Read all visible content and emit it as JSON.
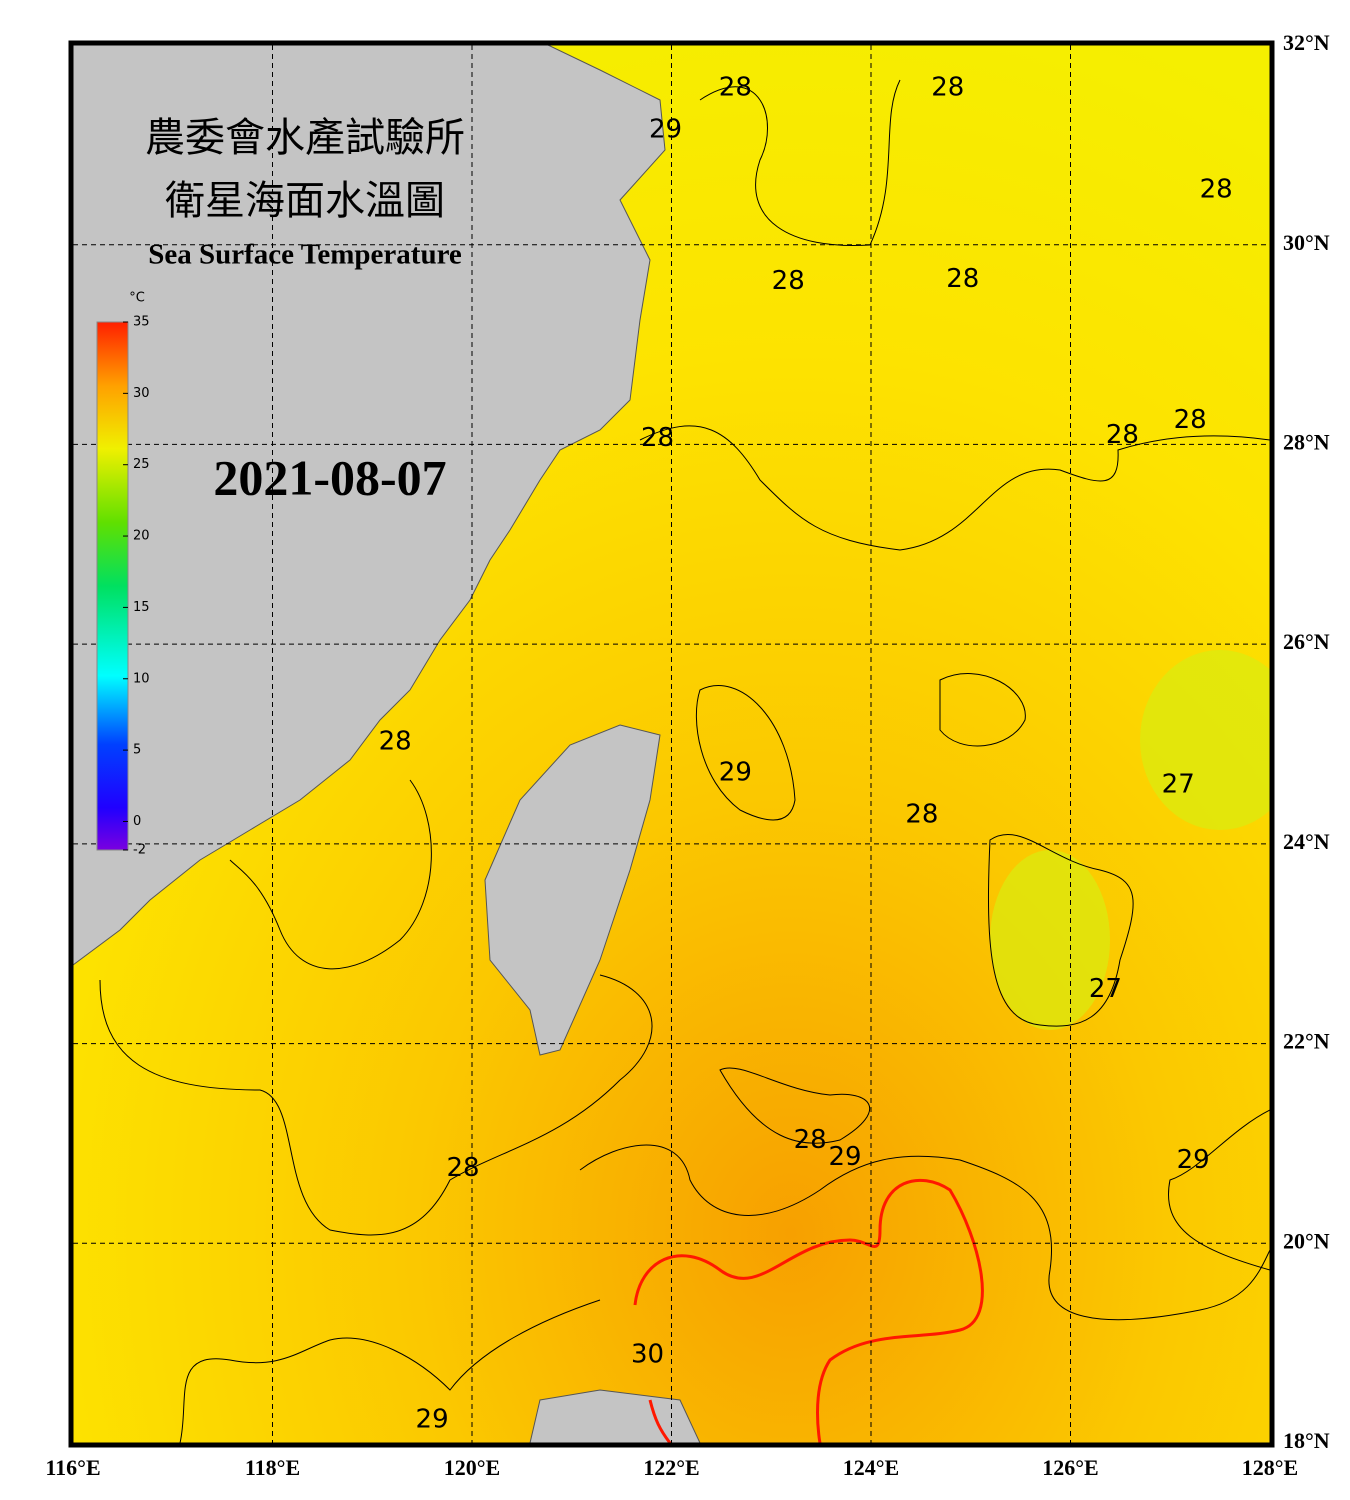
{
  "map": {
    "title_zh_1": "農委會水產試驗所",
    "title_zh_2": "衛星海面水溫圖",
    "title_en": "Sea Surface Temperature",
    "date": "2021-08-07",
    "xlim": [
      116,
      128
    ],
    "ylim": [
      18,
      32
    ],
    "xticks": [
      {
        "value": 116,
        "label": "116°E"
      },
      {
        "value": 118,
        "label": "118°E"
      },
      {
        "value": 120,
        "label": "120°E"
      },
      {
        "value": 122,
        "label": "122°E"
      },
      {
        "value": 124,
        "label": "124°E"
      },
      {
        "value": 126,
        "label": "126°E"
      },
      {
        "value": 128,
        "label": "128°E"
      }
    ],
    "yticks": [
      {
        "value": 18,
        "label": "18°N"
      },
      {
        "value": 20,
        "label": "20°N"
      },
      {
        "value": 22,
        "label": "22°N"
      },
      {
        "value": 24,
        "label": "24°N"
      },
      {
        "value": 26,
        "label": "26°N"
      },
      {
        "value": 28,
        "label": "28°N"
      },
      {
        "value": 30,
        "label": "30°N"
      },
      {
        "value": 32,
        "label": "32°N"
      }
    ],
    "grid": true,
    "colorbar": {
      "unit": "°C",
      "clim": [
        -2,
        35
      ],
      "ticks": [
        35,
        30,
        25,
        20,
        15,
        10,
        5,
        0,
        -2
      ]
    },
    "contour_labels": [
      {
        "value": 28,
        "lon": 122.64,
        "lat": 31.57
      },
      {
        "value": 28,
        "lon": 124.77,
        "lat": 31.57
      },
      {
        "value": 28,
        "lon": 127.46,
        "lat": 30.55
      },
      {
        "value": 28,
        "lon": 123.17,
        "lat": 29.63
      },
      {
        "value": 28,
        "lon": 124.92,
        "lat": 29.65
      },
      {
        "value": 28,
        "lon": 127.2,
        "lat": 28.24
      },
      {
        "value": 28,
        "lon": 126.52,
        "lat": 28.09
      },
      {
        "value": 28,
        "lon": 121.86,
        "lat": 28.06
      },
      {
        "value": 29,
        "lon": 121.94,
        "lat": 31.15
      },
      {
        "value": 28,
        "lon": 119.23,
        "lat": 25.02
      },
      {
        "value": 29,
        "lon": 122.64,
        "lat": 24.71
      },
      {
        "value": 28,
        "lon": 124.51,
        "lat": 24.29
      },
      {
        "value": 27,
        "lon": 127.08,
        "lat": 24.59
      },
      {
        "value": 27,
        "lon": 126.35,
        "lat": 22.54
      },
      {
        "value": 28,
        "lon": 119.91,
        "lat": 20.75
      },
      {
        "value": 28,
        "lon": 123.39,
        "lat": 21.03
      },
      {
        "value": 29,
        "lon": 123.74,
        "lat": 20.86
      },
      {
        "value": 29,
        "lon": 127.23,
        "lat": 20.83
      },
      {
        "value": 30,
        "lon": 121.76,
        "lat": 18.88
      },
      {
        "value": 29,
        "lon": 119.6,
        "lat": 18.23
      }
    ]
  }
}
